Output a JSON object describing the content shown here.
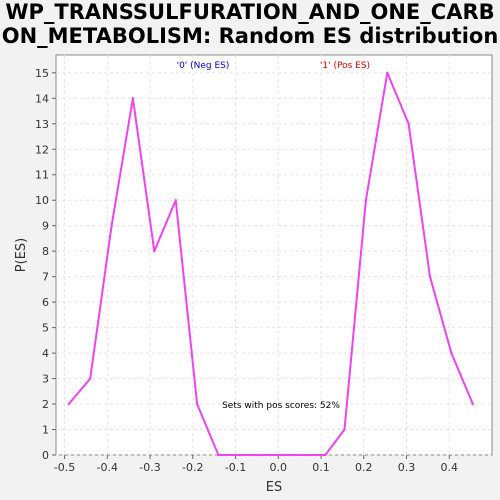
{
  "chart_data": {
    "type": "line",
    "title": "WP_TRANSSULFURATION_AND_ONE_CARBON_METABOLISM: Random ES distribution",
    "xlabel": "ES",
    "ylabel": "P(ES)",
    "xlim": [
      -0.52,
      0.5
    ],
    "ylim": [
      0,
      15.7
    ],
    "x_ticks": [
      "-0.5",
      "-0.4",
      "-0.3",
      "-0.2",
      "-0.1",
      "0.0",
      "0.1",
      "0.2",
      "0.3",
      "0.4"
    ],
    "y_ticks": [
      "0",
      "1",
      "2",
      "3",
      "4",
      "5",
      "6",
      "7",
      "8",
      "9",
      "10",
      "11",
      "12",
      "13",
      "14",
      "15"
    ],
    "grid": true,
    "legend": "none",
    "series": [
      {
        "color": "#ee44ee",
        "x": [
          -0.49,
          -0.44,
          -0.39,
          -0.34,
          -0.29,
          -0.24,
          -0.19,
          -0.14,
          -0.09,
          -0.04,
          0.01,
          0.06,
          0.11,
          0.155,
          0.205,
          0.255,
          0.305,
          0.355,
          0.405,
          0.455
        ],
        "y": [
          2,
          3,
          9,
          14,
          8,
          10,
          2,
          0,
          0,
          0,
          0,
          0,
          0,
          1,
          10,
          15,
          13,
          7,
          4,
          2
        ]
      }
    ],
    "annotations": {
      "neg_label": "'0' (Neg ES)",
      "pos_label": "'1' (Pos ES)",
      "neg_color": "#0000cc",
      "pos_color": "#dd0000",
      "pos_scores_text": "Sets with pos scores: 52%"
    }
  }
}
